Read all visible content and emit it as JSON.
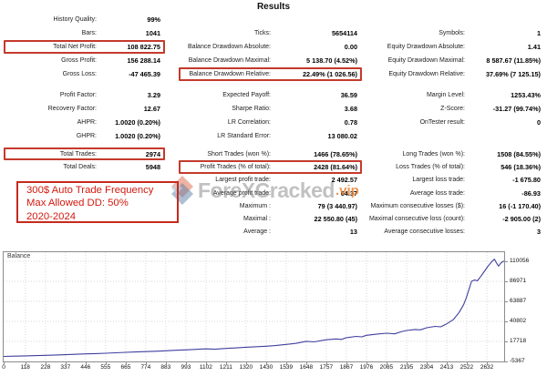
{
  "title": "Results",
  "watermark": {
    "brand": "ForeXCracked",
    "suffix": ".vip"
  },
  "annotation": {
    "lines": [
      "300$ Auto Trade Frequency",
      "Max Allowed DD: 50%",
      "2020-2024"
    ],
    "color": "#d2190e"
  },
  "highlight_color": "#c43a2c",
  "stats": {
    "columns": [
      {
        "blocks": [
          [
            {
              "label": "History Quality:",
              "value": "99%"
            },
            {
              "label": "Bars:",
              "value": "1041"
            },
            {
              "label": "Total Net Profit:",
              "value": "108 822.75",
              "highlighted": true
            },
            {
              "label": "Gross Profit:",
              "value": "156 288.14"
            },
            {
              "label": "Gross Loss:",
              "value": "-47 465.39"
            }
          ],
          [
            {
              "label": "Profit Factor:",
              "value": "3.29"
            },
            {
              "label": "Recovery Factor:",
              "value": "12.67"
            },
            {
              "label": "AHPR:",
              "value": "1.0020 (0.20%)"
            },
            {
              "label": "GHPR:",
              "value": "1.0020 (0.20%)"
            }
          ],
          [
            {
              "label": "Total Trades:",
              "value": "2974",
              "highlighted": true
            },
            {
              "label": "Total Deals:",
              "value": "5948"
            }
          ]
        ]
      },
      {
        "blocks": [
          [
            {
              "label": "",
              "value": ""
            },
            {
              "label": "Ticks:",
              "value": "5654114"
            },
            {
              "label": "Balance Drawdown Absolute:",
              "value": "0.00"
            },
            {
              "label": "Balance Drawdown Maximal:",
              "value": "5 138.70 (4.52%)"
            },
            {
              "label": "Balance Drawdown Relative:",
              "value": "22.49% (1 026.56)",
              "highlighted": true
            }
          ],
          [
            {
              "label": "Expected Payoff:",
              "value": "36.59"
            },
            {
              "label": "Sharpe Ratio:",
              "value": "3.68"
            },
            {
              "label": "LR Correlation:",
              "value": "0.78"
            },
            {
              "label": "LR Standard Error:",
              "value": "13 080.02"
            }
          ],
          [
            {
              "label": "Short Trades (won %):",
              "value": "1466 (78.65%)"
            },
            {
              "label": "Profit Trades (% of total):",
              "value": "2428 (81.64%)",
              "highlighted": true
            },
            {
              "label": "Largest profit trade:",
              "value": "2 492.57"
            },
            {
              "label": "Average profit trade:",
              "value": "64.37"
            },
            {
              "label": "Maximum :",
              "value": "79 (3 440.97)"
            },
            {
              "label": "Maximal :",
              "value": "22 550.80 (45)"
            },
            {
              "label": "Average :",
              "value": "13"
            }
          ]
        ]
      },
      {
        "blocks": [
          [
            {
              "label": "",
              "value": ""
            },
            {
              "label": "Symbols:",
              "value": "1"
            },
            {
              "label": "Equity Drawdown Absolute:",
              "value": "1.41"
            },
            {
              "label": "Equity Drawdown Maximal:",
              "value": "8 587.67 (11.85%)"
            },
            {
              "label": "Equity Drawdown Relative:",
              "value": "37.69% (7 125.15)"
            }
          ],
          [
            {
              "label": "Margin Level:",
              "value": "1253.43%"
            },
            {
              "label": "Z-Score:",
              "value": "-31.27 (99.74%)"
            },
            {
              "label": "OnTester result:",
              "value": "0"
            }
          ],
          [
            {
              "label": "Long Trades (won %):",
              "value": "1508 (84.55%)"
            },
            {
              "label": "Loss Trades (% of total):",
              "value": "546 (18.36%)"
            },
            {
              "label": "Largest loss trade:",
              "value": "-1 675.80"
            },
            {
              "label": "Average loss trade:",
              "value": "-86.93"
            },
            {
              "label": "Maximum consecutive losses ($):",
              "value": "16 (-1 170.40)"
            },
            {
              "label": "Maximal consecutive loss (count):",
              "value": "-2 905.00 (2)"
            },
            {
              "label": "Average consecutive losses:",
              "value": "3"
            }
          ]
        ]
      }
    ]
  },
  "chart_data": {
    "type": "line",
    "series_label": "Balance",
    "line_color": "#3f3f9f",
    "grid": true,
    "x_ticks": [
      0,
      118,
      228,
      337,
      446,
      555,
      665,
      774,
      883,
      993,
      1102,
      1211,
      1320,
      1430,
      1539,
      1648,
      1757,
      1867,
      1976,
      2085,
      2195,
      2304,
      2413,
      2522,
      2632
    ],
    "y_ticks": [
      110056,
      86971,
      63887,
      40802,
      17718,
      -5367
    ],
    "x_max": 2726,
    "y_range": [
      -5367,
      120552
    ],
    "points": [
      [
        0,
        400
      ],
      [
        60,
        700
      ],
      [
        118,
        1000
      ],
      [
        180,
        1400
      ],
      [
        228,
        1700
      ],
      [
        290,
        2100
      ],
      [
        337,
        2400
      ],
      [
        400,
        2900
      ],
      [
        446,
        3300
      ],
      [
        500,
        3700
      ],
      [
        555,
        4100
      ],
      [
        610,
        4600
      ],
      [
        665,
        5100
      ],
      [
        720,
        5500
      ],
      [
        774,
        6000
      ],
      [
        830,
        6400
      ],
      [
        883,
        6900
      ],
      [
        940,
        7500
      ],
      [
        993,
        8000
      ],
      [
        1050,
        8600
      ],
      [
        1102,
        9100
      ],
      [
        1150,
        8700
      ],
      [
        1211,
        9600
      ],
      [
        1270,
        10300
      ],
      [
        1320,
        11000
      ],
      [
        1380,
        11600
      ],
      [
        1430,
        12200
      ],
      [
        1480,
        12900
      ],
      [
        1539,
        14300
      ],
      [
        1590,
        15400
      ],
      [
        1648,
        17800
      ],
      [
        1690,
        17200
      ],
      [
        1757,
        19600
      ],
      [
        1810,
        20500
      ],
      [
        1840,
        20000
      ],
      [
        1867,
        22000
      ],
      [
        1920,
        23500
      ],
      [
        1950,
        23000
      ],
      [
        1976,
        24800
      ],
      [
        2030,
        26000
      ],
      [
        2085,
        27200
      ],
      [
        2130,
        26400
      ],
      [
        2165,
        28800
      ],
      [
        2195,
        30300
      ],
      [
        2240,
        31500
      ],
      [
        2270,
        31000
      ],
      [
        2304,
        33500
      ],
      [
        2350,
        35000
      ],
      [
        2380,
        34500
      ],
      [
        2413,
        38000
      ],
      [
        2450,
        43000
      ],
      [
        2480,
        51000
      ],
      [
        2505,
        60000
      ],
      [
        2520,
        68000
      ],
      [
        2535,
        78000
      ],
      [
        2548,
        87000
      ],
      [
        2565,
        88500
      ],
      [
        2580,
        87500
      ],
      [
        2600,
        93000
      ],
      [
        2620,
        99000
      ],
      [
        2640,
        105000
      ],
      [
        2660,
        110000
      ],
      [
        2673,
        112500
      ],
      [
        2685,
        108000
      ],
      [
        2695,
        104500
      ],
      [
        2710,
        108500
      ],
      [
        2726,
        110500
      ]
    ]
  }
}
